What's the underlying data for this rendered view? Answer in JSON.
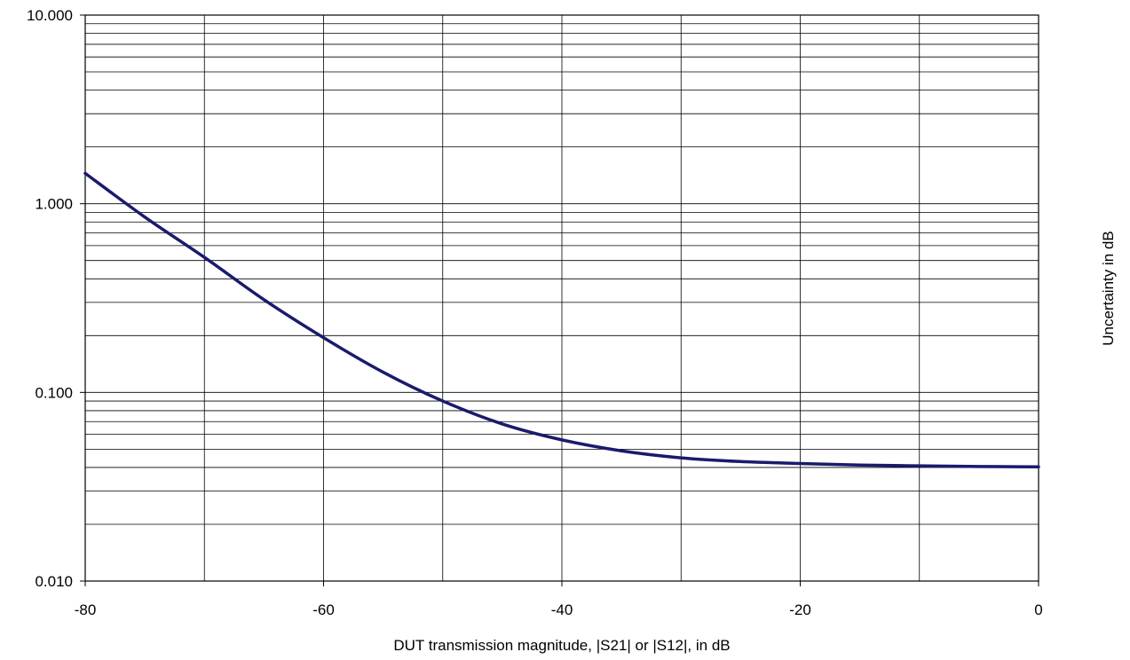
{
  "chart_data": {
    "type": "line",
    "title": "",
    "xlabel": "DUT transmission magnitude, |S21| or |S12|, in dB",
    "ylabel": "Uncertainty in dB",
    "xlim": [
      -80,
      0
    ],
    "ylim": [
      0.01,
      10
    ],
    "y_scale": "log",
    "grid": true,
    "legend": "none",
    "x_ticks": [
      "-80",
      "-60",
      "-40",
      "-20",
      "0"
    ],
    "y_ticks": [
      "0.010",
      "0.100",
      "1.000",
      "10.000"
    ],
    "colors": {
      "series": "#1a1a6e",
      "grid": "#000000",
      "background": "#ffffff"
    },
    "series": [
      {
        "x": [
          -80,
          -75,
          -70,
          -65,
          -60,
          -55,
          -50,
          -45,
          -40,
          -35,
          -30,
          -25,
          -20,
          -15,
          -10,
          -5,
          0
        ],
        "y": [
          1.45,
          0.85,
          0.52,
          0.31,
          0.195,
          0.128,
          0.09,
          0.068,
          0.056,
          0.049,
          0.045,
          0.043,
          0.042,
          0.0412,
          0.0408,
          0.0405,
          0.0403
        ]
      }
    ]
  }
}
